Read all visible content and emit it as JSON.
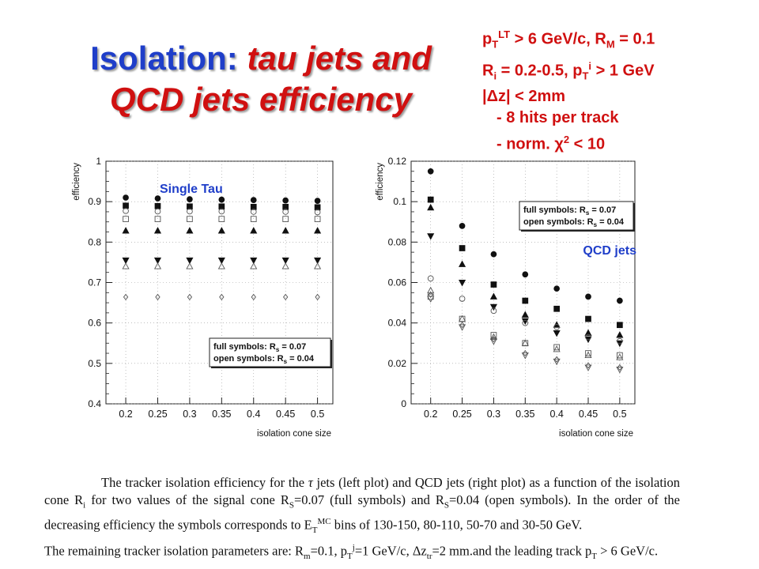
{
  "title": {
    "part1": "Isolation:",
    "part2": "tau jets and",
    "line2": "QCD jets  efficiency"
  },
  "params": {
    "l1": {
      "a": "p",
      "b": "T",
      "c": "LT",
      "d": " > 6 GeV/c, R",
      "e": "M",
      "f": " = 0.1"
    },
    "l2": {
      "a": "R",
      "b": "i",
      "c": " = 0.2-0.5, p",
      "d": "T",
      "e": "i",
      "f": " > 1 GeV"
    },
    "l3": {
      "a": "|",
      "b": "Δ",
      "c": "z| < 2mm"
    },
    "l4": "- 8 hits per track",
    "l5": {
      "a": "- norm. ",
      "b": "χ",
      "c": "2",
      "d": " < 10"
    }
  },
  "caption": {
    "s1": "The tracker isolation efficiency for the ",
    "tau": "τ",
    "s2": " jets (left plot) and QCD jets (right plot) as a function of the isolation cone R",
    "i": "i",
    "s3": " for two values of the signal cone R",
    "S": "S",
    "s4": "=0.07 (full symbols) and R",
    "s5": "=0.04 (open symbols).  In the order of the decreasing efficiency the symbols corresponds to E",
    "T": "T",
    "MC": "MC",
    "s6": " bins of 130-150, 80-110, 50-70 and 30-50 GeV.",
    "s7": "The remaining tracker isolation parameters are: R",
    "m": "m",
    "s8": "=0.1, p",
    "j": "j",
    "s9": "=1 GeV/c, Δz",
    "tr": "tr",
    "s10": "=2 mm.and the leading track p",
    "s11": " > 6 GeV/c."
  },
  "chart_data": [
    {
      "type": "scatter",
      "title": "Single Tau",
      "xlabel": "isolation cone size",
      "ylabel": "efficiency",
      "x": [
        0.2,
        0.25,
        0.3,
        0.35,
        0.4,
        0.45,
        0.5
      ],
      "ylim": [
        0.4,
        1.0
      ],
      "yticks": [
        0.4,
        0.5,
        0.6,
        0.7,
        0.8,
        0.9,
        1
      ],
      "grid": true,
      "legend": {
        "position": "bottom-right",
        "lines": [
          "full symbols: R",
          "open symbols: R"
        ],
        "subs": [
          "s",
          "s"
        ],
        "values": [
          " = 0.07",
          " = 0.04"
        ]
      },
      "series": [
        {
          "marker": "circle",
          "filled": true,
          "values": [
            0.91,
            0.908,
            0.906,
            0.905,
            0.904,
            0.903,
            0.902
          ]
        },
        {
          "marker": "square",
          "filled": true,
          "values": [
            0.89,
            0.889,
            0.888,
            0.888,
            0.887,
            0.887,
            0.886
          ]
        },
        {
          "marker": "triangle-up",
          "filled": true,
          "values": [
            0.828,
            0.828,
            0.828,
            0.828,
            0.828,
            0.828,
            0.828
          ]
        },
        {
          "marker": "triangle-down",
          "filled": true,
          "values": [
            0.755,
            0.755,
            0.755,
            0.755,
            0.755,
            0.755,
            0.755
          ]
        },
        {
          "marker": "square",
          "filled": false,
          "values": [
            0.857,
            0.857,
            0.857,
            0.857,
            0.857,
            0.857,
            0.857
          ]
        },
        {
          "marker": "circle",
          "filled": false,
          "values": [
            0.877,
            0.876,
            0.876,
            0.876,
            0.875,
            0.875,
            0.874
          ]
        },
        {
          "marker": "triangle-up",
          "filled": false,
          "values": [
            0.74,
            0.74,
            0.74,
            0.74,
            0.74,
            0.74,
            0.74
          ]
        },
        {
          "marker": "diamond",
          "filled": false,
          "values": [
            0.664,
            0.664,
            0.664,
            0.664,
            0.664,
            0.664,
            0.664
          ]
        }
      ]
    },
    {
      "type": "scatter",
      "title": "QCD jets",
      "xlabel": "isolation cone size",
      "ylabel": "efficiency",
      "x": [
        0.2,
        0.25,
        0.3,
        0.35,
        0.4,
        0.45,
        0.5
      ],
      "ylim": [
        0,
        0.12
      ],
      "yticks": [
        0,
        0.02,
        0.04,
        0.06,
        0.08,
        0.1,
        0.12
      ],
      "grid": true,
      "legend": {
        "position": "top-right",
        "lines": [
          "full symbols: R",
          "open symbols: R"
        ],
        "subs": [
          "s",
          "s"
        ],
        "values": [
          " = 0.07",
          " = 0.04"
        ]
      },
      "series": [
        {
          "marker": "circle",
          "filled": true,
          "values": [
            0.115,
            0.088,
            0.074,
            0.064,
            0.057,
            0.053,
            0.051
          ]
        },
        {
          "marker": "square",
          "filled": true,
          "values": [
            0.101,
            0.077,
            0.059,
            0.051,
            0.047,
            0.042,
            0.039
          ]
        },
        {
          "marker": "triangle-up",
          "filled": true,
          "values": [
            0.097,
            0.069,
            0.053,
            0.044,
            0.039,
            0.035,
            0.034
          ]
        },
        {
          "marker": "triangle-down",
          "filled": true,
          "values": [
            0.083,
            0.06,
            0.048,
            0.041,
            0.035,
            0.032,
            0.03
          ]
        },
        {
          "marker": "circle",
          "filled": false,
          "values": [
            0.062,
            0.052,
            0.046,
            0.04,
            0.038,
            0.033,
            0.031
          ]
        },
        {
          "marker": "triangle-up",
          "filled": false,
          "values": [
            0.056,
            0.042,
            0.033,
            0.03,
            0.027,
            0.024,
            0.023
          ]
        },
        {
          "marker": "square",
          "filled": false,
          "values": [
            0.053,
            0.042,
            0.034,
            0.03,
            0.028,
            0.025,
            0.024
          ]
        },
        {
          "marker": "diamond",
          "filled": false,
          "values": [
            0.054,
            0.039,
            0.032,
            0.025,
            0.022,
            0.019,
            0.018
          ]
        },
        {
          "marker": "triangle-down",
          "filled": false,
          "values": [
            0.052,
            0.038,
            0.031,
            0.024,
            0.021,
            0.018,
            0.017
          ]
        }
      ]
    }
  ]
}
